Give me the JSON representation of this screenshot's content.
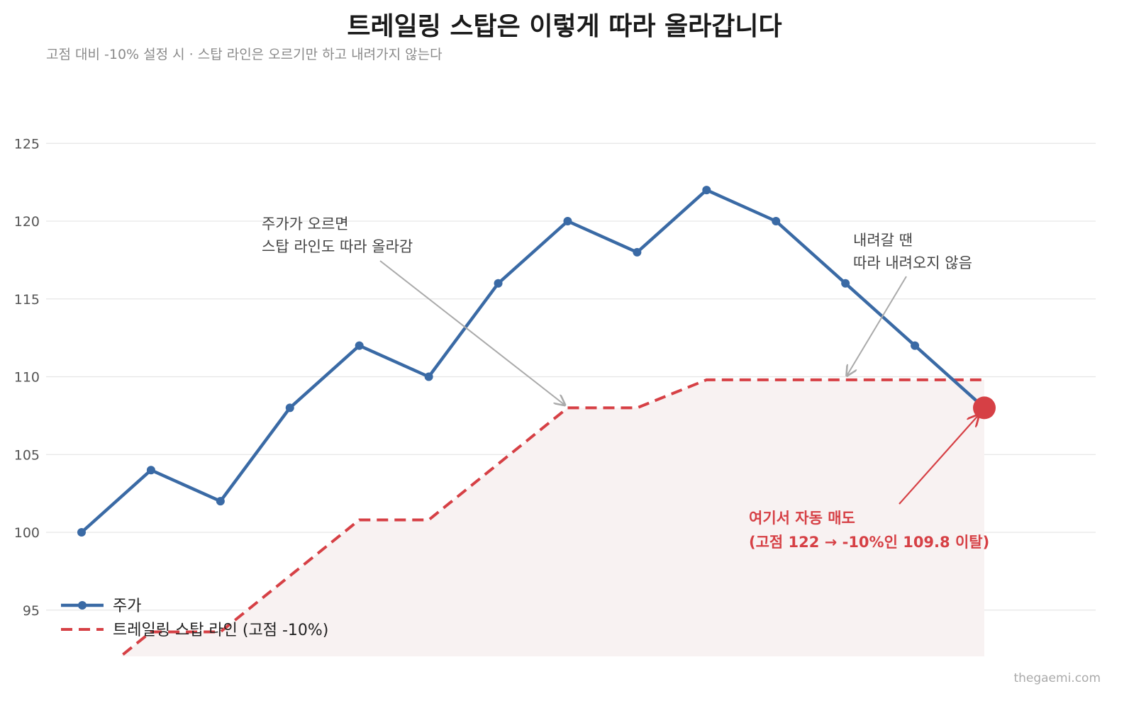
{
  "title": "트레일링 스탑은 이렇게 따라 올라갑니다",
  "subtitle": "고점 대비 -10% 설정 시  ·  스탑 라인은 오르기만 하고 내려가지 않는다",
  "credit": "thegaemi.com",
  "colors": {
    "price": "#3a6aa5",
    "stop": "#d64045",
    "fill": "#f8f2f2",
    "grid": "#e6e6e6",
    "annotation_arrow": "#aaaaaa"
  },
  "chart_data": {
    "type": "line",
    "x": [
      0,
      1,
      2,
      3,
      4,
      5,
      6,
      7,
      8,
      9,
      10,
      11,
      12,
      13
    ],
    "ylim": [
      92,
      127
    ],
    "yticks": [
      95,
      100,
      105,
      110,
      115,
      120,
      125
    ],
    "grid": true,
    "legend_position": "bottom-left",
    "series": [
      {
        "name": "주가",
        "values": [
          100,
          104,
          102,
          108,
          112,
          110,
          116,
          120,
          118,
          122,
          120,
          116,
          112,
          108
        ],
        "style": "solid",
        "markers": true
      },
      {
        "name": "트레일링 스탑 라인 (고점 -10%)",
        "values": [
          90.0,
          93.6,
          93.6,
          97.2,
          100.8,
          100.8,
          104.4,
          108.0,
          108.0,
          109.8,
          109.8,
          109.8,
          109.8,
          109.8
        ],
        "style": "dashed",
        "markers": false
      }
    ],
    "annotations": [
      {
        "lines": [
          "주가가 오르면",
          "스탑 라인도 따라 올라감"
        ],
        "target": {
          "x": 7,
          "y": 108.0
        }
      },
      {
        "lines": [
          "내려갈 땐",
          "따라 내려오지 않음"
        ],
        "target": {
          "x": 11,
          "y": 109.8
        }
      },
      {
        "lines": [
          "여기서 자동 매도",
          "(고점 122 → -10%인 109.8 이탈)"
        ],
        "target": {
          "x": 13,
          "y": 108
        },
        "highlight": true
      }
    ]
  }
}
